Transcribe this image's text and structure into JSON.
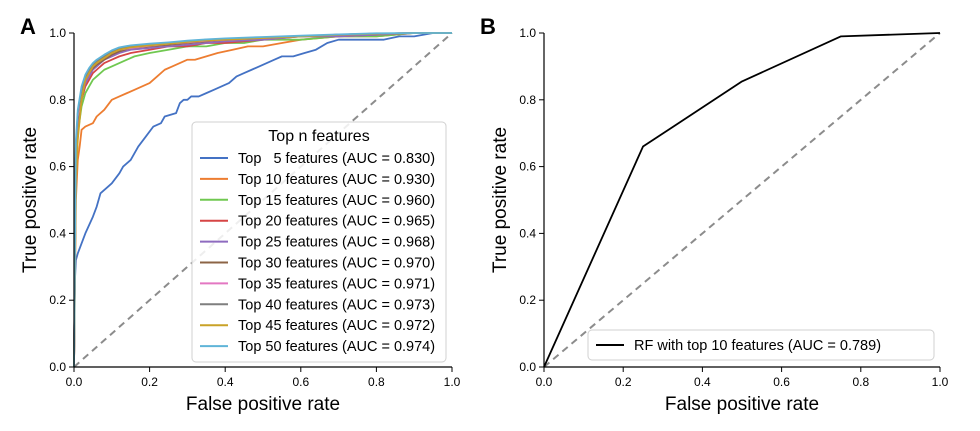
{
  "chart_data": [
    {
      "panel": "A",
      "type": "line",
      "xlabel": "False positive rate",
      "ylabel": "True positive rate",
      "xlim": [
        0,
        1
      ],
      "ylim": [
        0,
        1
      ],
      "xticks": [
        "0.0",
        "0.2",
        "0.4",
        "0.6",
        "0.8",
        "1.0"
      ],
      "yticks": [
        "0.0",
        "0.2",
        "0.4",
        "0.6",
        "0.8",
        "1.0"
      ],
      "grid": false,
      "legend_title": "Top n features",
      "legend_position": "lower-right",
      "reference_line": "diagonal-dashed",
      "series": [
        {
          "name": "Top   5 features (AUC = 0.830)",
          "color": "#4472c4",
          "x": [
            0,
            0.002,
            0.005,
            0.01,
            0.02,
            0.03,
            0.05,
            0.06,
            0.07,
            0.09,
            0.1,
            0.12,
            0.13,
            0.15,
            0.17,
            0.19,
            0.21,
            0.23,
            0.24,
            0.27,
            0.28,
            0.29,
            0.3,
            0.31,
            0.33,
            0.35,
            0.37,
            0.39,
            0.41,
            0.43,
            0.45,
            0.47,
            0.49,
            0.51,
            0.53,
            0.55,
            0.58,
            0.61,
            0.64,
            0.67,
            0.7,
            0.74,
            0.78,
            0.82,
            0.86,
            0.9,
            0.95,
            1.0
          ],
          "y": [
            0,
            0.25,
            0.32,
            0.34,
            0.37,
            0.4,
            0.45,
            0.48,
            0.52,
            0.54,
            0.55,
            0.58,
            0.6,
            0.62,
            0.66,
            0.69,
            0.72,
            0.73,
            0.75,
            0.76,
            0.79,
            0.8,
            0.8,
            0.81,
            0.81,
            0.82,
            0.83,
            0.84,
            0.85,
            0.87,
            0.88,
            0.89,
            0.9,
            0.91,
            0.92,
            0.93,
            0.93,
            0.94,
            0.95,
            0.97,
            0.98,
            0.98,
            0.98,
            0.98,
            0.99,
            0.99,
            1.0,
            1.0
          ]
        },
        {
          "name": "Top 10 features (AUC = 0.930)",
          "color": "#ed7d31",
          "x": [
            0,
            0.005,
            0.01,
            0.015,
            0.02,
            0.03,
            0.05,
            0.06,
            0.08,
            0.1,
            0.12,
            0.14,
            0.16,
            0.18,
            0.2,
            0.22,
            0.24,
            0.26,
            0.28,
            0.3,
            0.32,
            0.35,
            0.38,
            0.42,
            0.46,
            0.5,
            0.55,
            0.6,
            0.7,
            0.8,
            0.9,
            1.0
          ],
          "y": [
            0,
            0.5,
            0.62,
            0.66,
            0.71,
            0.72,
            0.73,
            0.75,
            0.77,
            0.8,
            0.81,
            0.82,
            0.83,
            0.84,
            0.85,
            0.87,
            0.89,
            0.9,
            0.91,
            0.92,
            0.92,
            0.93,
            0.94,
            0.95,
            0.96,
            0.96,
            0.97,
            0.98,
            0.99,
            0.99,
            1.0,
            1.0
          ]
        },
        {
          "name": "Top 15 features (AUC = 0.960)",
          "color": "#70c850",
          "x": [
            0,
            0.005,
            0.01,
            0.02,
            0.03,
            0.04,
            0.05,
            0.06,
            0.08,
            0.1,
            0.12,
            0.14,
            0.16,
            0.2,
            0.25,
            0.3,
            0.35,
            0.4,
            0.45,
            0.5,
            0.6,
            0.7,
            0.8,
            0.9,
            1.0
          ],
          "y": [
            0,
            0.6,
            0.7,
            0.78,
            0.82,
            0.84,
            0.86,
            0.87,
            0.89,
            0.9,
            0.91,
            0.92,
            0.93,
            0.94,
            0.95,
            0.96,
            0.96,
            0.97,
            0.97,
            0.98,
            0.98,
            0.99,
            0.99,
            1.0,
            1.0
          ]
        },
        {
          "name": "Top 20 features (AUC = 0.965)",
          "color": "#d64545",
          "x": [
            0,
            0.005,
            0.01,
            0.02,
            0.03,
            0.04,
            0.05,
            0.06,
            0.08,
            0.1,
            0.12,
            0.15,
            0.2,
            0.25,
            0.3,
            0.35,
            0.4,
            0.5,
            0.6,
            0.7,
            0.8,
            0.9,
            1.0
          ],
          "y": [
            0,
            0.62,
            0.72,
            0.8,
            0.84,
            0.86,
            0.88,
            0.89,
            0.91,
            0.92,
            0.93,
            0.94,
            0.95,
            0.96,
            0.96,
            0.97,
            0.97,
            0.98,
            0.99,
            0.99,
            0.995,
            1.0,
            1.0
          ]
        },
        {
          "name": "Top 25 features (AUC = 0.968)",
          "color": "#8e6bbf",
          "x": [
            0,
            0.005,
            0.01,
            0.02,
            0.03,
            0.04,
            0.05,
            0.06,
            0.08,
            0.1,
            0.12,
            0.15,
            0.2,
            0.25,
            0.3,
            0.35,
            0.4,
            0.5,
            0.6,
            0.7,
            0.8,
            0.9,
            1.0
          ],
          "y": [
            0,
            0.63,
            0.73,
            0.81,
            0.85,
            0.87,
            0.89,
            0.9,
            0.92,
            0.93,
            0.94,
            0.95,
            0.955,
            0.96,
            0.965,
            0.97,
            0.975,
            0.98,
            0.99,
            0.99,
            0.995,
            1.0,
            1.0
          ]
        },
        {
          "name": "Top 30 features (AUC = 0.970)",
          "color": "#8c6446",
          "x": [
            0,
            0.005,
            0.01,
            0.02,
            0.03,
            0.04,
            0.05,
            0.06,
            0.08,
            0.1,
            0.12,
            0.15,
            0.2,
            0.25,
            0.3,
            0.35,
            0.4,
            0.5,
            0.6,
            0.7,
            0.8,
            0.9,
            1.0
          ],
          "y": [
            0,
            0.64,
            0.74,
            0.82,
            0.86,
            0.88,
            0.895,
            0.905,
            0.92,
            0.935,
            0.945,
            0.955,
            0.96,
            0.965,
            0.97,
            0.975,
            0.98,
            0.985,
            0.99,
            0.995,
            0.998,
            1.0,
            1.0
          ]
        },
        {
          "name": "Top 35 features (AUC = 0.971)",
          "color": "#e377c2",
          "x": [
            0,
            0.005,
            0.01,
            0.02,
            0.03,
            0.04,
            0.05,
            0.06,
            0.08,
            0.1,
            0.12,
            0.15,
            0.2,
            0.25,
            0.3,
            0.35,
            0.4,
            0.5,
            0.6,
            0.7,
            0.8,
            0.9,
            1.0
          ],
          "y": [
            0,
            0.65,
            0.75,
            0.82,
            0.86,
            0.88,
            0.9,
            0.91,
            0.925,
            0.94,
            0.95,
            0.955,
            0.962,
            0.968,
            0.972,
            0.977,
            0.98,
            0.985,
            0.99,
            0.995,
            0.998,
            1.0,
            1.0
          ]
        },
        {
          "name": "Top 40 features (AUC = 0.973)",
          "color": "#7f7f7f",
          "x": [
            0,
            0.005,
            0.01,
            0.02,
            0.03,
            0.04,
            0.05,
            0.06,
            0.08,
            0.1,
            0.12,
            0.15,
            0.2,
            0.25,
            0.3,
            0.35,
            0.4,
            0.5,
            0.6,
            0.7,
            0.8,
            0.9,
            1.0
          ],
          "y": [
            0,
            0.66,
            0.76,
            0.83,
            0.87,
            0.89,
            0.905,
            0.915,
            0.93,
            0.945,
            0.955,
            0.96,
            0.965,
            0.97,
            0.975,
            0.98,
            0.982,
            0.987,
            0.99,
            0.995,
            0.998,
            1.0,
            1.0
          ]
        },
        {
          "name": "Top 45 features (AUC = 0.972)",
          "color": "#c9a227",
          "x": [
            0,
            0.005,
            0.01,
            0.02,
            0.03,
            0.04,
            0.05,
            0.06,
            0.08,
            0.1,
            0.12,
            0.15,
            0.2,
            0.25,
            0.3,
            0.35,
            0.4,
            0.5,
            0.6,
            0.7,
            0.8,
            0.9,
            1.0
          ],
          "y": [
            0,
            0.55,
            0.68,
            0.8,
            0.86,
            0.88,
            0.9,
            0.91,
            0.925,
            0.94,
            0.95,
            0.957,
            0.963,
            0.968,
            0.973,
            0.978,
            0.98,
            0.985,
            0.99,
            0.995,
            0.998,
            1.0,
            1.0
          ]
        },
        {
          "name": "Top 50 features (AUC = 0.974)",
          "color": "#5fb4d8",
          "x": [
            0,
            0.005,
            0.01,
            0.02,
            0.03,
            0.04,
            0.05,
            0.06,
            0.08,
            0.1,
            0.12,
            0.15,
            0.2,
            0.25,
            0.3,
            0.35,
            0.4,
            0.5,
            0.6,
            0.7,
            0.8,
            0.9,
            1.0
          ],
          "y": [
            0,
            0.68,
            0.77,
            0.84,
            0.875,
            0.895,
            0.91,
            0.92,
            0.935,
            0.948,
            0.957,
            0.963,
            0.968,
            0.972,
            0.977,
            0.981,
            0.984,
            0.988,
            0.992,
            0.996,
            0.999,
            1.0,
            1.0
          ]
        }
      ]
    },
    {
      "panel": "B",
      "type": "line",
      "xlabel": "False positive rate",
      "ylabel": "True positive rate",
      "xlim": [
        0,
        1
      ],
      "ylim": [
        0,
        1
      ],
      "xticks": [
        "0.0",
        "0.2",
        "0.4",
        "0.6",
        "0.8",
        "1.0"
      ],
      "yticks": [
        "0.0",
        "0.2",
        "0.4",
        "0.6",
        "0.8",
        "1.0"
      ],
      "grid": false,
      "legend_position": "lower-right",
      "reference_line": "diagonal-dashed",
      "series": [
        {
          "name": "RF with top 10 features (AUC = 0.789)",
          "color": "#000000",
          "x": [
            0,
            0.25,
            0.5,
            0.75,
            1.0
          ],
          "y": [
            0,
            0.66,
            0.855,
            0.99,
            1.0
          ]
        }
      ]
    }
  ]
}
